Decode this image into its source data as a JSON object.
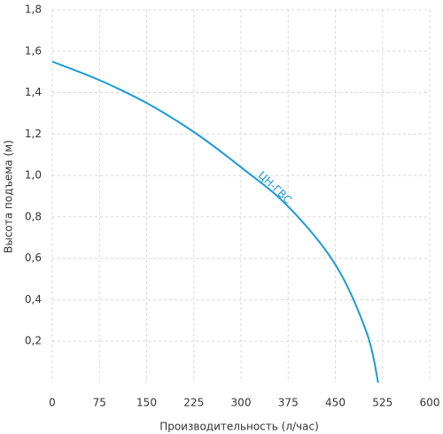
{
  "chart_data": {
    "type": "line",
    "xlabel": "Производительность (л/час)",
    "ylabel": "Высота подъема (м)",
    "x": [
      0,
      75,
      150,
      225,
      300,
      375,
      450,
      500,
      518
    ],
    "series": [
      {
        "name": "ЦН-ГВС",
        "color": "#1a9bd7",
        "values": [
          1.55,
          1.46,
          1.35,
          1.21,
          1.04,
          0.85,
          0.57,
          0.24,
          0
        ]
      }
    ],
    "xlim": [
      0,
      600
    ],
    "xticks": [
      0,
      75,
      150,
      225,
      300,
      375,
      450,
      525,
      600
    ],
    "ylim": [
      0,
      1.8
    ],
    "yticks": [
      {
        "value": 0.2,
        "label": "0,2"
      },
      {
        "value": 0.4,
        "label": "0,4"
      },
      {
        "value": 0.6,
        "label": "0,6"
      },
      {
        "value": 0.8,
        "label": "0,8"
      },
      {
        "value": 1.0,
        "label": "1,0"
      },
      {
        "value": 1.2,
        "label": "1,2"
      },
      {
        "value": 1.4,
        "label": "1,4"
      },
      {
        "value": 1.6,
        "label": "1,6"
      },
      {
        "value": 1.8,
        "label": "1,8"
      }
    ],
    "grid": true
  }
}
